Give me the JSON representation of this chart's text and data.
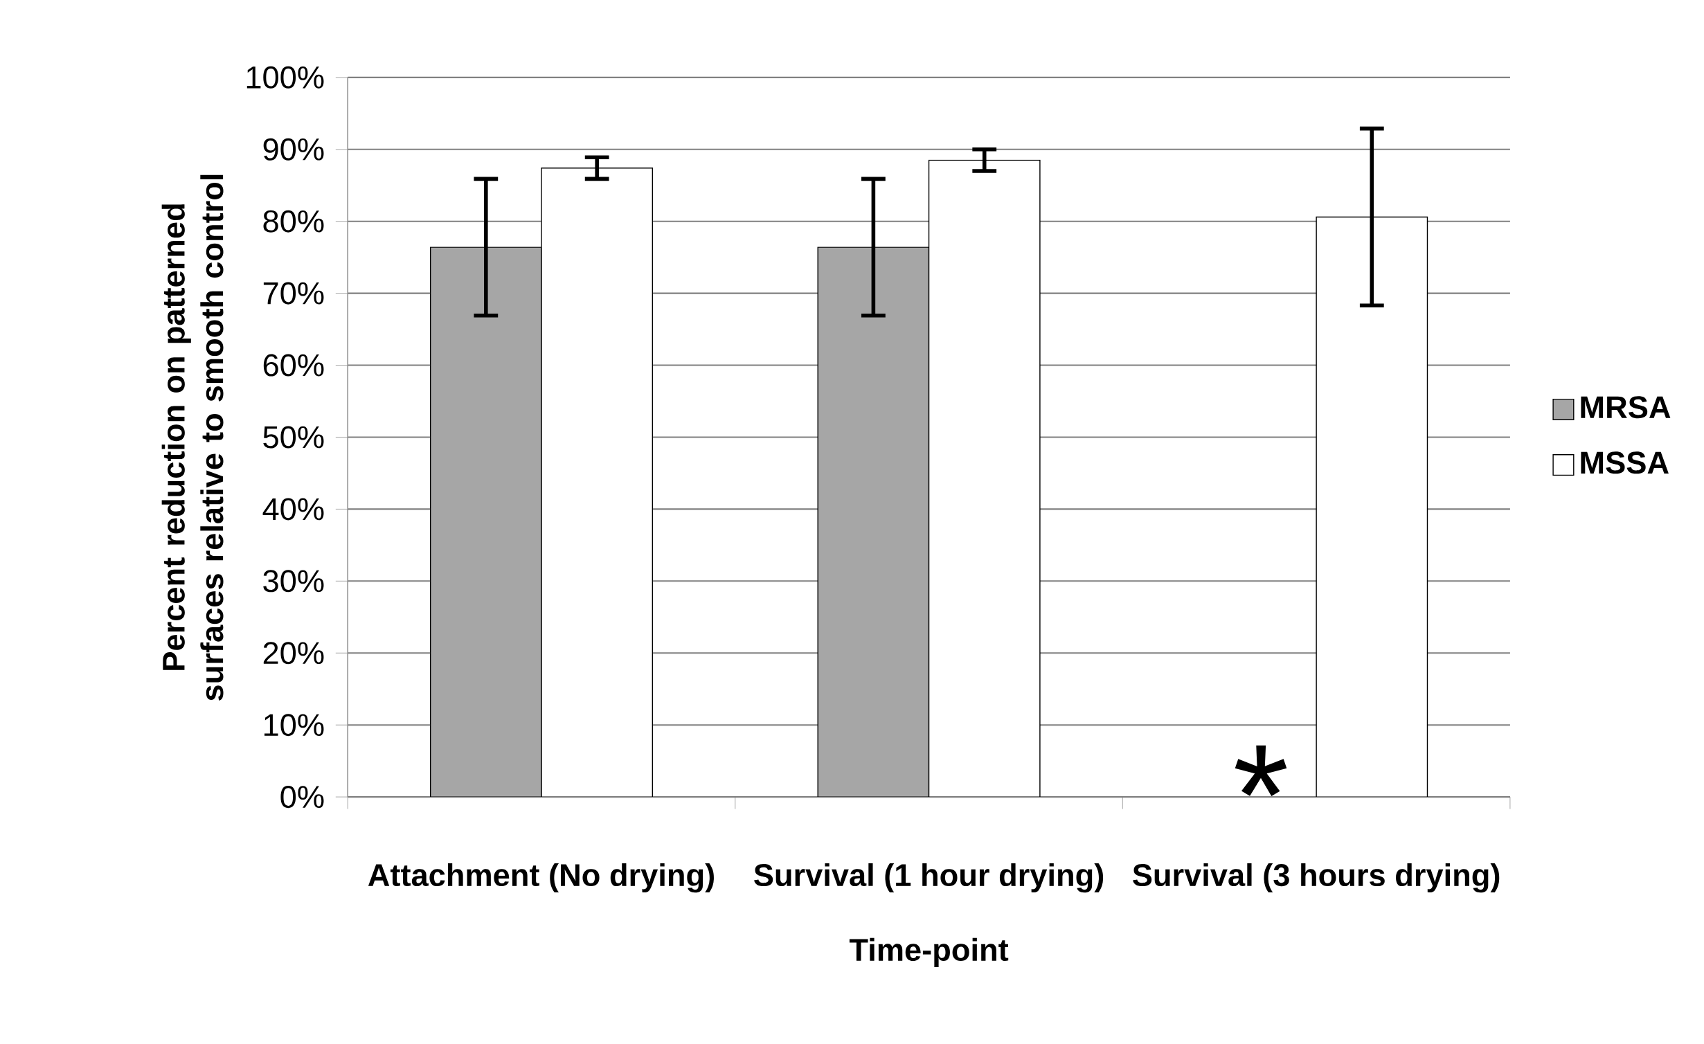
{
  "chart_data": {
    "type": "bar",
    "xlabel": "Time-point",
    "ylabel": "Percent reduction on patterned surfaces relative to smooth control",
    "categories": [
      "Attachment (No drying)",
      "Survival (1 hour drying)",
      "Survival (3 hours drying)"
    ],
    "series": [
      {
        "name": "MRSA",
        "color": "#a6a6a6",
        "values": [
          76.4,
          76.4,
          null
        ],
        "errors": [
          9.5,
          9.5,
          null
        ]
      },
      {
        "name": "MSSA",
        "color": "#ffffff",
        "values": [
          87.4,
          88.5,
          80.6
        ],
        "errors": [
          1.5,
          1.5,
          12.3
        ]
      }
    ],
    "ylim": [
      0,
      100
    ],
    "yticks": [
      {
        "value": 0,
        "label": "0%"
      },
      {
        "value": 10,
        "label": "10%"
      },
      {
        "value": 20,
        "label": "20%"
      },
      {
        "value": 30,
        "label": "30%"
      },
      {
        "value": 40,
        "label": "40%"
      },
      {
        "value": 50,
        "label": "50%"
      },
      {
        "value": 60,
        "label": "60%"
      },
      {
        "value": 70,
        "label": "70%"
      },
      {
        "value": 80,
        "label": "80%"
      },
      {
        "value": 90,
        "label": "90%"
      },
      {
        "value": 100,
        "label": "100%"
      }
    ],
    "annotations": [
      "*"
    ],
    "grid": "y",
    "legend": "right"
  }
}
